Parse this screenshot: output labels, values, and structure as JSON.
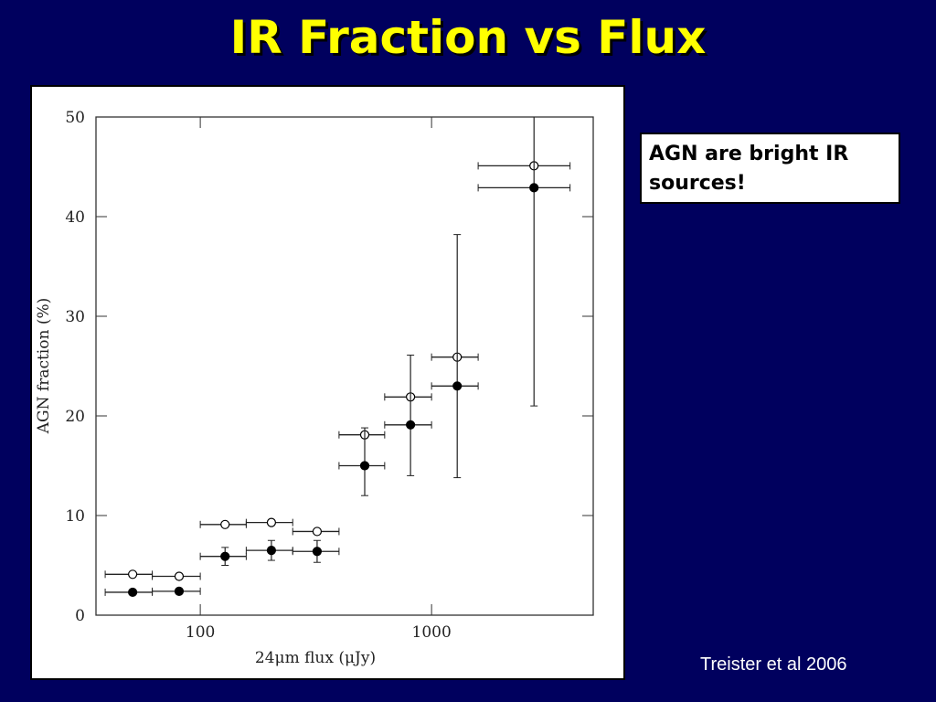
{
  "title": "IR Fraction vs Flux",
  "note_box": "AGN are bright IR sources!",
  "citation": "Treister et al 2006",
  "chart_data": {
    "type": "scatter",
    "xlabel": "24μm flux (μJy)",
    "ylabel": "AGN fraction (%)",
    "xscale": "log",
    "xlim": [
      35.4,
      5000
    ],
    "xticks": [
      100,
      1000
    ],
    "ylim": [
      0,
      50
    ],
    "yticks": [
      0,
      10,
      20,
      30,
      40,
      50
    ],
    "x": [
      51,
      81,
      128,
      203,
      320,
      514,
      811,
      1291,
      2773
    ],
    "xlow": [
      38.8,
      62,
      100,
      158,
      251,
      398,
      627,
      1000,
      1590
    ],
    "xhigh": [
      62,
      100,
      158,
      251,
      398,
      627,
      1000,
      1590,
      3970
    ],
    "series": [
      {
        "marker": "open",
        "color": "#000000",
        "values": [
          4.1,
          3.9,
          9.1,
          9.3,
          8.4,
          18.1,
          21.9,
          25.9,
          45.1
        ]
      },
      {
        "marker": "filled",
        "color": "#000000",
        "values": [
          2.3,
          2.4,
          5.9,
          6.5,
          6.4,
          15.0,
          19.1,
          23.0,
          42.9
        ],
        "ylow": [
          null,
          null,
          5.0,
          5.5,
          5.3,
          12.0,
          14.0,
          13.8,
          21.0
        ],
        "yhigh": [
          null,
          null,
          6.8,
          7.5,
          7.5,
          18.8,
          26.1,
          38.2,
          52
        ]
      }
    ]
  }
}
